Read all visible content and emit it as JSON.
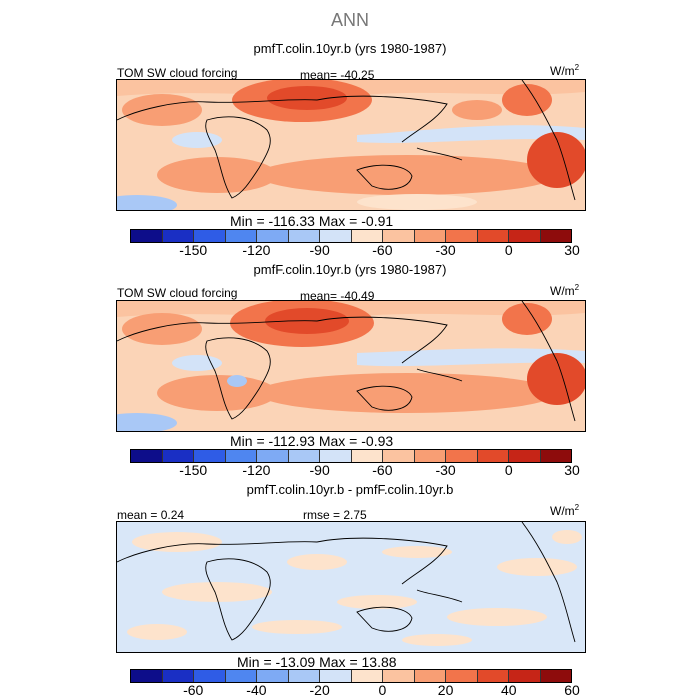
{
  "figure": {
    "title": "ANN"
  },
  "panels": [
    {
      "title": "pmfT.colin.10yr.b (yrs 1980-1987)",
      "left_label": "TOM SW cloud forcing",
      "center_label": "mean= -40.25",
      "units": "W/m",
      "units_sup": "2",
      "minmax": "Min = -116.33 Max = -0.91",
      "ticks": [
        "-150",
        "-120",
        "-90",
        "-60",
        "-30",
        "0",
        "30"
      ]
    },
    {
      "title": "pmfF.colin.10yr.b (yrs 1980-1987)",
      "left_label": "TOM SW cloud forcing",
      "center_label": "mean= -40.49",
      "units": "W/m",
      "units_sup": "2",
      "minmax": "Min = -112.93 Max = -0.93",
      "ticks": [
        "-150",
        "-120",
        "-90",
        "-60",
        "-30",
        "0",
        "30"
      ]
    },
    {
      "title": "pmfT.colin.10yr.b - pmfF.colin.10yr.b",
      "left_label": "mean = 0.24",
      "center_label": "rmse = 2.75",
      "units": "W/m",
      "units_sup": "2",
      "minmax": "Min = -13.09 Max = 13.88",
      "ticks": [
        "-60",
        "-40",
        "-20",
        "0",
        "20",
        "40",
        "60"
      ]
    }
  ],
  "colorbar_colors": [
    "#0d0d8a",
    "#1a2fc4",
    "#2f5ce6",
    "#4f86f0",
    "#7eaaf4",
    "#a9c8f6",
    "#d3e3f8",
    "#fde3cc",
    "#fbc3a0",
    "#f89e74",
    "#f2744b",
    "#e24a2a",
    "#c62517",
    "#8e0c0c"
  ]
}
